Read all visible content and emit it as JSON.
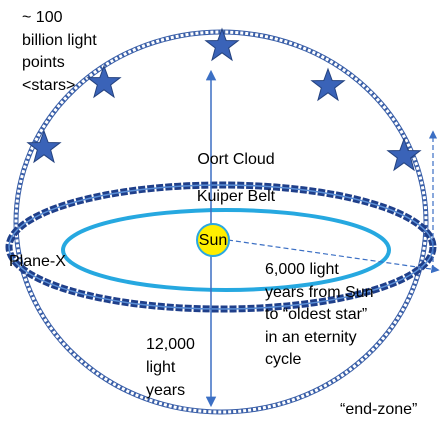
{
  "labels": {
    "stars": [
      "~ 100",
      "billion light",
      "points",
      "<stars>"
    ],
    "oort": "Oort Cloud",
    "kuiper": "Kuiper Belt",
    "sun": "Sun",
    "plane": "Plane-X",
    "distance": [
      "6,000 light",
      "years from Sun",
      "to “oldest star”",
      "in an eternity",
      "cycle"
    ],
    "diameter": [
      "12,000",
      "light",
      "years"
    ],
    "end_zone": "“end-zone”"
  }
}
